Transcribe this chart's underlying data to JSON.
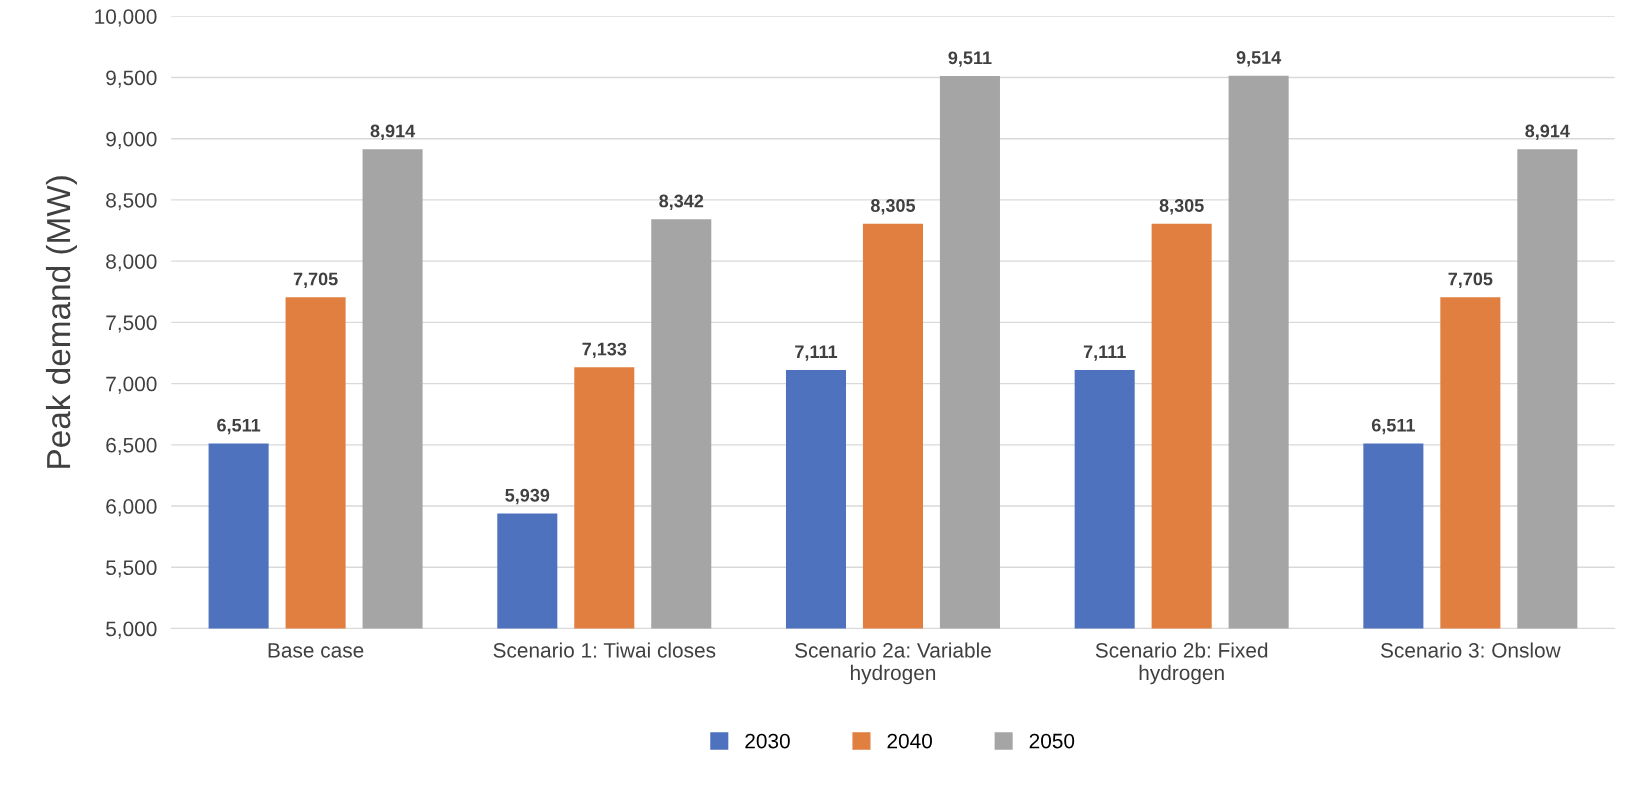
{
  "chart_data": {
    "type": "bar",
    "ylabel": "Peak demand (MW)",
    "categories": [
      "Base case",
      "Scenario 1: Tiwai closes",
      "Scenario 2a: Variable\nhydrogen",
      "Scenario 2b: Fixed\nhydrogen",
      "Scenario 3: Onslow"
    ],
    "series": [
      {
        "name": "2030",
        "color": "#4e72be",
        "values": [
          6511,
          5939,
          7111,
          7111,
          6511
        ],
        "value_labels": [
          "6,511",
          "5,939",
          "7,111",
          "7,111",
          "6,511"
        ]
      },
      {
        "name": "2040",
        "color": "#e07f3f",
        "values": [
          7705,
          7133,
          8305,
          8305,
          7705
        ],
        "value_labels": [
          "7,705",
          "7,133",
          "8,305",
          "8,305",
          "7,705"
        ]
      },
      {
        "name": "2050",
        "color": "#a5a5a5",
        "values": [
          8914,
          8342,
          9511,
          9514,
          8914
        ],
        "value_labels": [
          "8,914",
          "8,342",
          "9,511",
          "9,514",
          "8,914"
        ]
      }
    ],
    "ylim": [
      5000,
      10000
    ],
    "yticks": [
      {
        "value": 5000,
        "label": "5,000"
      },
      {
        "value": 5500,
        "label": "5,500"
      },
      {
        "value": 6000,
        "label": "6,000"
      },
      {
        "value": 6500,
        "label": "6,500"
      },
      {
        "value": 7000,
        "label": "7,000"
      },
      {
        "value": 7500,
        "label": "7,500"
      },
      {
        "value": 8000,
        "label": "8,000"
      },
      {
        "value": 8500,
        "label": "8,500"
      },
      {
        "value": 9000,
        "label": "9,000"
      },
      {
        "value": 9500,
        "label": "9,500"
      },
      {
        "value": 10000,
        "label": "10,000"
      }
    ],
    "grid": "y",
    "legend": "bottom"
  }
}
